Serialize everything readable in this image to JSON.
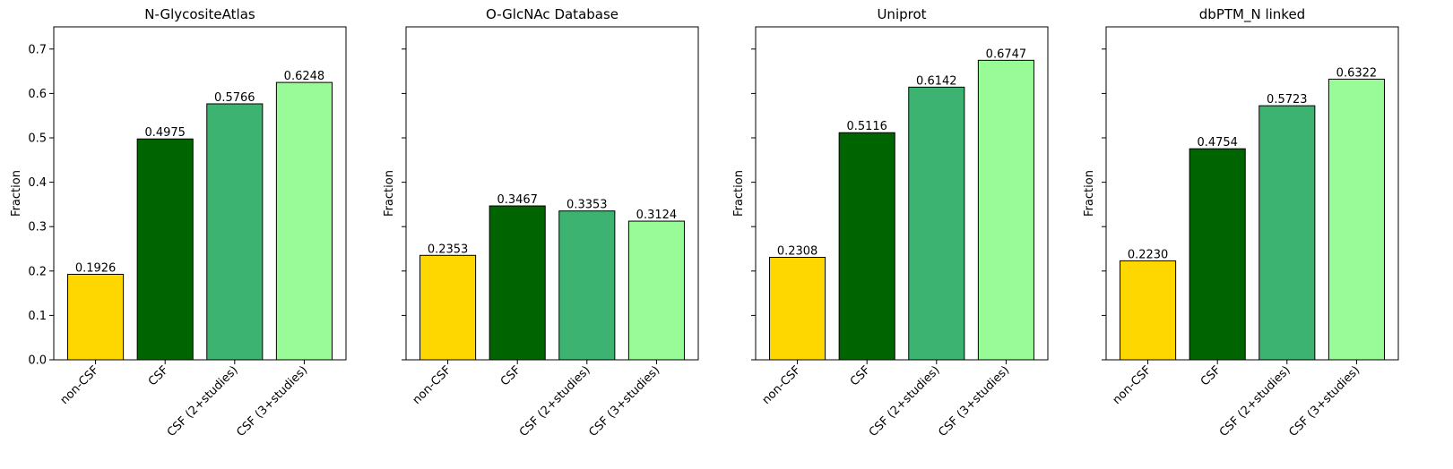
{
  "chart_data": [
    {
      "type": "bar",
      "title": "N-GlycositeAtlas",
      "ylabel": "Fraction",
      "categories": [
        "non-CSF",
        "CSF",
        "CSF (2+studies)",
        "CSF (3+studies)"
      ],
      "values": [
        0.1926,
        0.4975,
        0.5766,
        0.6248
      ],
      "value_labels": [
        "0.1926",
        "0.4975",
        "0.5766",
        "0.6248"
      ],
      "ylim": [
        0,
        0.75
      ],
      "yticks": [
        0.0,
        0.1,
        0.2,
        0.3,
        0.4,
        0.5,
        0.6,
        0.7
      ],
      "ytick_labels": [
        "0.0",
        "0.1",
        "0.2",
        "0.3",
        "0.4",
        "0.5",
        "0.6",
        "0.7"
      ]
    },
    {
      "type": "bar",
      "title": "O-GlcNAc Database",
      "ylabel": "Fraction",
      "categories": [
        "non-CSF",
        "CSF",
        "CSF (2+studies)",
        "CSF (3+studies)"
      ],
      "values": [
        0.2353,
        0.3467,
        0.3353,
        0.3124
      ],
      "value_labels": [
        "0.2353",
        "0.3467",
        "0.3353",
        "0.3124"
      ],
      "ylim": [
        0,
        0.75
      ],
      "yticks": [
        0.0,
        0.1,
        0.2,
        0.3,
        0.4,
        0.5,
        0.6,
        0.7
      ],
      "ytick_labels": []
    },
    {
      "type": "bar",
      "title": "Uniprot",
      "ylabel": "Fraction",
      "categories": [
        "non-CSF",
        "CSF",
        "CSF (2+studies)",
        "CSF (3+studies)"
      ],
      "values": [
        0.2308,
        0.5116,
        0.6142,
        0.6747
      ],
      "value_labels": [
        "0.2308",
        "0.5116",
        "0.6142",
        "0.6747"
      ],
      "ylim": [
        0,
        0.75
      ],
      "yticks": [
        0.0,
        0.1,
        0.2,
        0.3,
        0.4,
        0.5,
        0.6,
        0.7
      ],
      "ytick_labels": []
    },
    {
      "type": "bar",
      "title": "dbPTM_N linked",
      "ylabel": "Fraction",
      "categories": [
        "non-CSF",
        "CSF",
        "CSF (2+studies)",
        "CSF (3+studies)"
      ],
      "values": [
        0.223,
        0.4754,
        0.5723,
        0.6322
      ],
      "value_labels": [
        "0.2230",
        "0.4754",
        "0.5723",
        "0.6322"
      ],
      "ylim": [
        0,
        0.75
      ],
      "yticks": [
        0.0,
        0.1,
        0.2,
        0.3,
        0.4,
        0.5,
        0.6,
        0.7
      ],
      "ytick_labels": []
    }
  ],
  "bar_colors": [
    "#FFD700",
    "#006400",
    "#3CB371",
    "#98FB98"
  ],
  "bar_edge_color": "#000000",
  "grid": false,
  "legend": "none"
}
